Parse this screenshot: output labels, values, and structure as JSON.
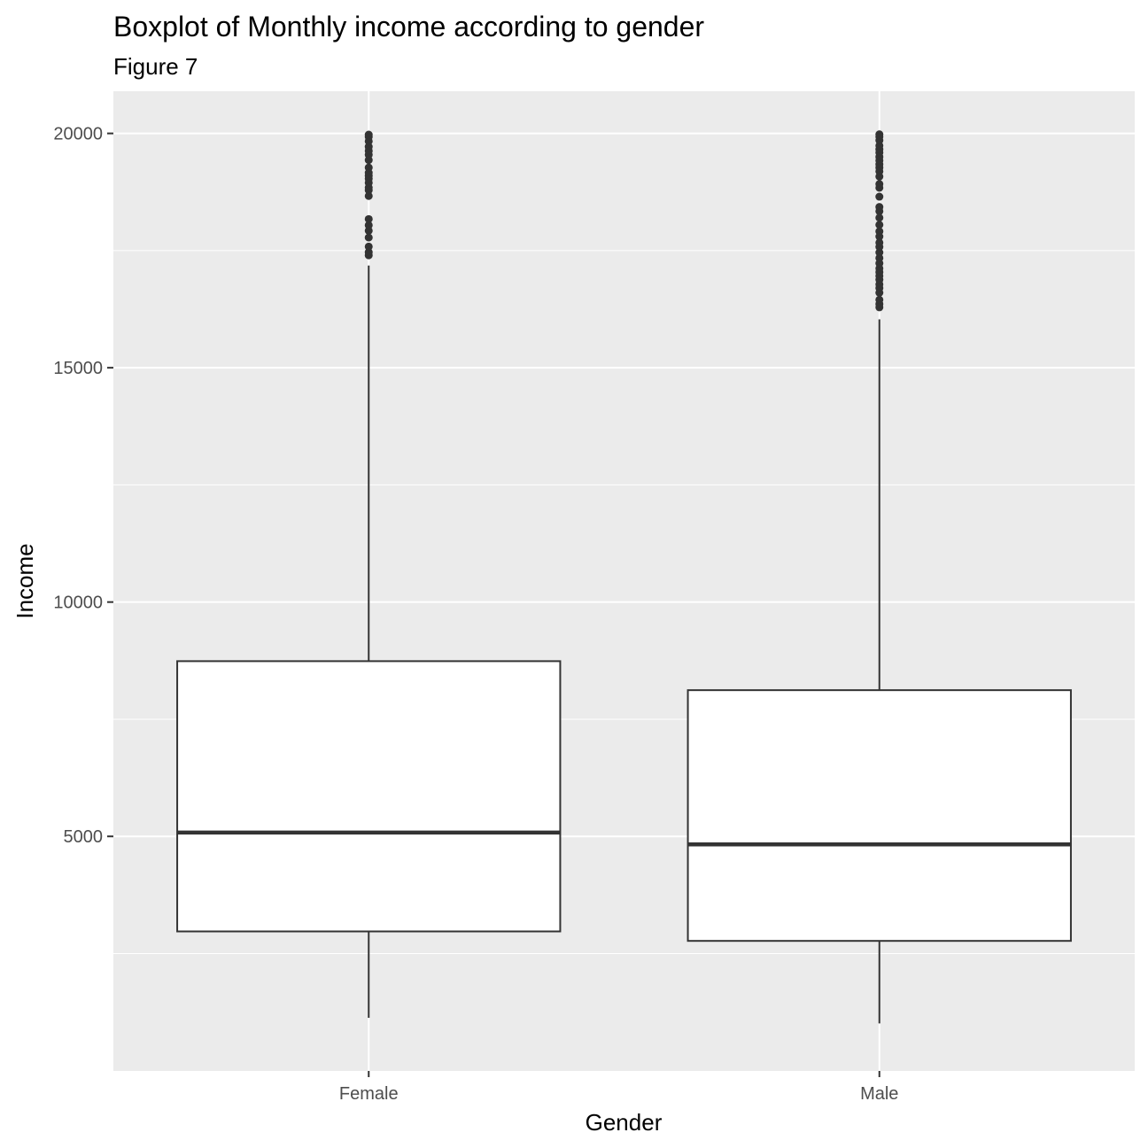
{
  "chart_data": {
    "type": "boxplot",
    "title": "Boxplot of Monthly income according to gender",
    "subtitle": "Figure 7",
    "xlabel": "Gender",
    "ylabel": "Income",
    "ylim": [
      -5,
      20900
    ],
    "yticks": [
      5000,
      10000,
      15000,
      20000
    ],
    "yticks_minor": [
      2500,
      7500,
      12500,
      17500
    ],
    "grid": true,
    "categories": [
      "Female",
      "Male"
    ],
    "boxes": [
      {
        "category": "Female",
        "whisker_low": 1129,
        "q1": 2972,
        "median": 5082,
        "q3": 8739,
        "whisker_high": 17181,
        "outliers": [
          17399,
          17465,
          17584,
          17779,
          17924,
          18041,
          18172,
          18665,
          18789,
          18844,
          18947,
          19033,
          19094,
          19161,
          19272,
          19431,
          19545,
          19627,
          19717,
          19833,
          19926,
          19973
        ]
      },
      {
        "category": "Male",
        "whisker_low": 1009,
        "q1": 2770,
        "median": 4828,
        "q3": 8120,
        "whisker_high": 16033,
        "outliers": [
          16290,
          16360,
          16450,
          16600,
          16700,
          16780,
          16880,
          16960,
          17040,
          17120,
          17230,
          17340,
          17460,
          17580,
          17670,
          17800,
          17910,
          18050,
          18200,
          18340,
          18430,
          18650,
          18840,
          18920,
          19080,
          19190,
          19270,
          19340,
          19420,
          19500,
          19590,
          19660,
          19740,
          19850,
          19930,
          19980
        ]
      }
    ]
  },
  "colors": {
    "panel_background": "#ebebeb",
    "grid_major": "#ffffff",
    "grid_minor": "#ffffff",
    "box_fill": "#ffffff",
    "box_line": "#333333",
    "outlier": "#333333",
    "tick_text": "#4d4d4d",
    "axis_tick": "#333333"
  }
}
